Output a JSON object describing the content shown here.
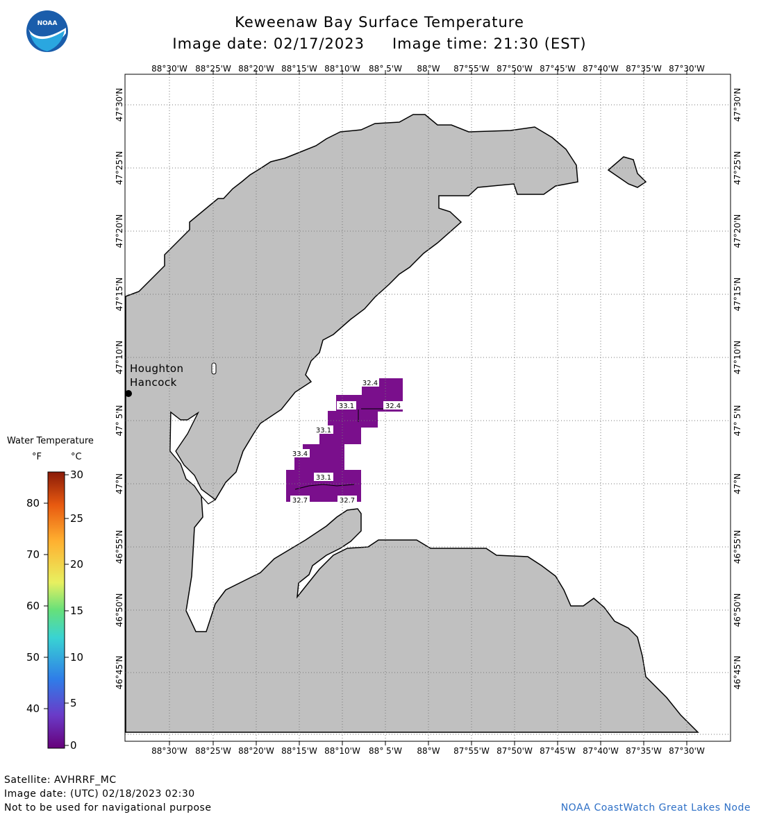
{
  "header": {
    "title": "Keweenaw Bay Surface Temperature",
    "image_date_label": "Image date: 02/17/2023",
    "image_time_label": "Image time: 21:30 (EST)"
  },
  "logo": {
    "text": "NOAA",
    "icon": "noaa-logo-icon"
  },
  "map": {
    "top_lon_labels": [
      "88°30'W",
      "88°25'W",
      "88°20'W",
      "88°15'W",
      "88°10'W",
      "88° 5'W",
      "88°W",
      "87°55'W",
      "87°50'W",
      "87°45'W",
      "87°40'W",
      "87°35'W",
      "87°30'W"
    ],
    "bottom_lon_labels": [
      "88°30'W",
      "88°25'W",
      "88°20'W",
      "88°15'W",
      "88°10'W",
      "88° 5'W",
      "88°W",
      "87°55'W",
      "87°50'W",
      "87°45'W",
      "87°40'W",
      "87°35'W",
      "87°30'W"
    ],
    "left_lat_labels": [
      "47°30'N",
      "47°25'N",
      "47°20'N",
      "47°15'N",
      "47°10'N",
      "47° 5'N",
      "47°N",
      "46°55'N",
      "46°50'N",
      "46°45'N"
    ],
    "right_lat_labels": [
      "47°30'N",
      "47°25'N",
      "47°20'N",
      "47°15'N",
      "47°10'N",
      "47° 5'N",
      "47°N",
      "46°55'N",
      "46°50'N",
      "46°45'N"
    ],
    "land_color": "#c0c0c0",
    "water_color": "#ffffff",
    "temperature_color": "#7a0f8c",
    "city_label_1": "Houghton",
    "city_label_2": "Hancock",
    "temp_labels": [
      "32.4",
      "33.1",
      "32.4",
      "33.1",
      "33.4",
      "33.1",
      "32.7",
      "32.7"
    ]
  },
  "legend": {
    "title": "Water Temperature",
    "unit_f": "°F",
    "unit_c": "°C",
    "f_labels": [
      "80",
      "70",
      "60",
      "50",
      "40"
    ],
    "c_labels": [
      "30",
      "25",
      "20",
      "15",
      "10",
      "5",
      "0"
    ],
    "colors": [
      "#e04000",
      "#ff9900",
      "#ffff66",
      "#66ff66",
      "#33cccc",
      "#3399ff",
      "#6633cc",
      "#66007a"
    ]
  },
  "footer": {
    "satellite": "Satellite: AVHRRF_MC",
    "utc_date": "Image date: (UTC) 02/18/2023  02:30",
    "disclaimer": "Not to be used for navigational purpose",
    "credit": "NOAA CoastWatch Great Lakes Node"
  }
}
